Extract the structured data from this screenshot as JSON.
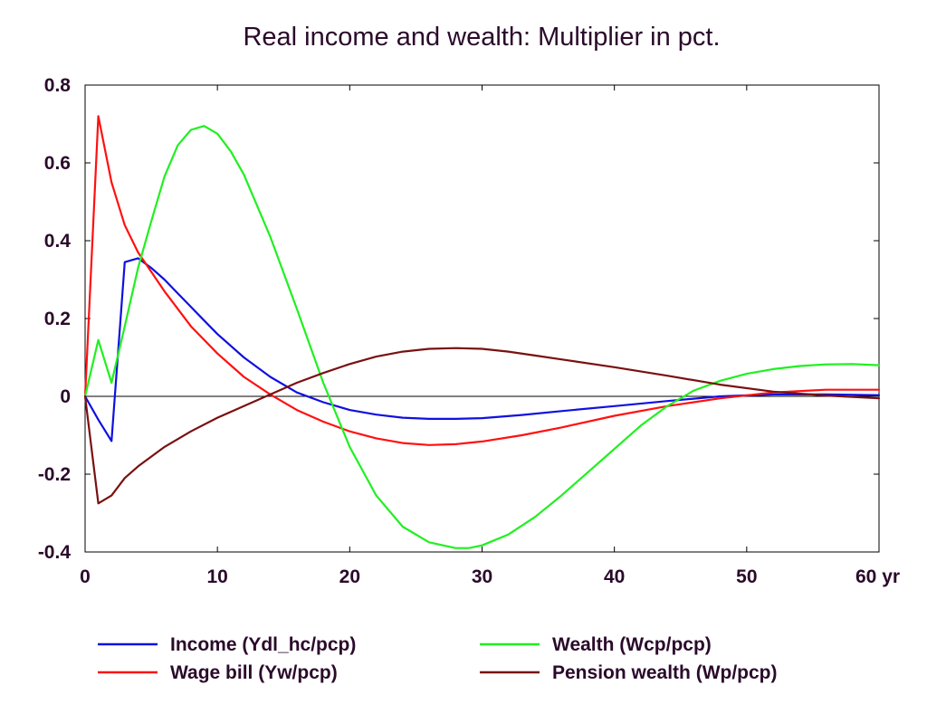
{
  "chart_data": {
    "type": "line",
    "title": "Real income and wealth: Multiplier in pct.",
    "x_unit_label": "yr",
    "xlim": [
      0,
      60
    ],
    "ylim": [
      -0.4,
      0.8
    ],
    "x_ticks": [
      0,
      10,
      20,
      30,
      40,
      50,
      60
    ],
    "x_tick_labels": [
      "0",
      "10",
      "20",
      "30",
      "40",
      "50",
      "60 yr"
    ],
    "y_ticks": [
      -0.4,
      -0.2,
      0,
      0.2,
      0.4,
      0.6,
      0.8
    ],
    "y_tick_labels": [
      "-0.4",
      "-0.2",
      "0",
      "0.2",
      "0.4",
      "0.6",
      "0.8"
    ],
    "zero_line": true,
    "grid": false,
    "legend_position": "bottom",
    "series": [
      {
        "name": "Income (Ydl_hc/pcp)",
        "color": "#1010e0",
        "x": [
          0,
          1,
          2,
          3,
          4,
          5,
          6,
          7,
          8,
          9,
          10,
          12,
          14,
          16,
          18,
          20,
          22,
          24,
          26,
          28,
          30,
          33,
          36,
          40,
          44,
          48,
          52,
          56,
          60
        ],
        "y": [
          0,
          -0.06,
          -0.115,
          0.345,
          0.355,
          0.33,
          0.3,
          0.265,
          0.23,
          0.195,
          0.16,
          0.1,
          0.05,
          0.01,
          -0.015,
          -0.035,
          -0.047,
          -0.055,
          -0.058,
          -0.058,
          -0.056,
          -0.048,
          -0.038,
          -0.025,
          -0.012,
          0,
          0.005,
          0.005,
          0.003
        ]
      },
      {
        "name": "Wage bill (Yw/pcp)",
        "color": "#ff1010",
        "x": [
          0,
          1,
          2,
          3,
          4,
          5,
          6,
          8,
          10,
          12,
          14,
          16,
          18,
          20,
          22,
          24,
          26,
          28,
          30,
          33,
          36,
          40,
          44,
          48,
          52,
          56,
          60
        ],
        "y": [
          0,
          0.72,
          0.55,
          0.44,
          0.37,
          0.32,
          0.27,
          0.18,
          0.11,
          0.05,
          0.005,
          -0.035,
          -0.065,
          -0.09,
          -0.108,
          -0.12,
          -0.125,
          -0.123,
          -0.116,
          -0.1,
          -0.08,
          -0.05,
          -0.025,
          -0.005,
          0.01,
          0.017,
          0.017
        ]
      },
      {
        "name": "Wealth (Wcp/pcp)",
        "color": "#20f020",
        "x": [
          0,
          1,
          2,
          3,
          4,
          5,
          6,
          7,
          8,
          9,
          10,
          11,
          12,
          14,
          16,
          18,
          20,
          22,
          24,
          26,
          28,
          29,
          30,
          32,
          34,
          36,
          38,
          40,
          42,
          44,
          46,
          48,
          50,
          52,
          54,
          56,
          58,
          60
        ],
        "y": [
          0,
          0.145,
          0.035,
          0.18,
          0.33,
          0.45,
          0.565,
          0.645,
          0.685,
          0.695,
          0.675,
          0.63,
          0.57,
          0.41,
          0.225,
          0.035,
          -0.13,
          -0.255,
          -0.335,
          -0.375,
          -0.39,
          -0.39,
          -0.383,
          -0.355,
          -0.31,
          -0.255,
          -0.195,
          -0.135,
          -0.075,
          -0.025,
          0.015,
          0.04,
          0.058,
          0.07,
          0.078,
          0.082,
          0.083,
          0.08
        ]
      },
      {
        "name": "Pension wealth (Wp/pcp)",
        "color": "#7a1010",
        "x": [
          0,
          1,
          2,
          3,
          4,
          5,
          6,
          8,
          10,
          12,
          14,
          16,
          18,
          20,
          22,
          24,
          26,
          28,
          30,
          32,
          34,
          36,
          40,
          44,
          48,
          52,
          56,
          60
        ],
        "y": [
          0,
          -0.275,
          -0.255,
          -0.21,
          -0.18,
          -0.155,
          -0.13,
          -0.09,
          -0.055,
          -0.025,
          0.005,
          0.035,
          0.06,
          0.083,
          0.102,
          0.115,
          0.122,
          0.124,
          0.122,
          0.115,
          0.105,
          0.095,
          0.075,
          0.053,
          0.03,
          0.012,
          0.002,
          -0.005
        ]
      }
    ]
  }
}
